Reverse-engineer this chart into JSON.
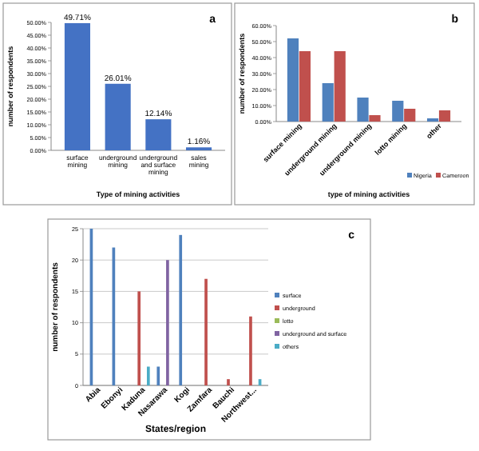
{
  "chart_data": [
    {
      "type": "bar",
      "annotations": [
        "a"
      ],
      "xlabel": "Type of mining activities",
      "ylabel": "number of respondents",
      "categories": [
        "surface mining",
        "underground mining",
        "underground and surface mining",
        "sales mining"
      ],
      "values": [
        49.71,
        26.01,
        12.14,
        1.16
      ],
      "color": "#4472c4",
      "value_labels": [
        "49.71%",
        "26.01%",
        "12.14%",
        "1.16%"
      ],
      "ylim": [
        0,
        50
      ],
      "yticks": [
        {
          "value": 0,
          "label": "0.00%"
        },
        {
          "value": 5,
          "label": "5.00%"
        },
        {
          "value": 10,
          "label": "10.00%"
        },
        {
          "value": 15,
          "label": "15.00%"
        },
        {
          "value": 20,
          "label": "20.00%"
        },
        {
          "value": 25,
          "label": "25.00%"
        },
        {
          "value": 30,
          "label": "30.00%"
        },
        {
          "value": 35,
          "label": "35.00%"
        },
        {
          "value": 40,
          "label": "40.00%"
        },
        {
          "value": 45,
          "label": "45.00%"
        },
        {
          "value": 50,
          "label": "50.00%"
        }
      ]
    },
    {
      "type": "bar",
      "annotations": [
        "b"
      ],
      "xlabel": "type of mining activities",
      "ylabel": "number of respondents",
      "categories": [
        "surface mining",
        "underground mining",
        "underground mining",
        "lotto mining",
        "other"
      ],
      "series": [
        {
          "name": "Nigeria",
          "color": "#4f81bd",
          "values": [
            52,
            24,
            15,
            13,
            2
          ]
        },
        {
          "name": "Cameroon",
          "color": "#c0504d",
          "values": [
            44,
            44,
            4,
            8,
            7
          ]
        }
      ],
      "ylim": [
        0,
        60
      ],
      "yticks": [
        {
          "value": 0,
          "label": "0.00%"
        },
        {
          "value": 10,
          "label": "10.00%"
        },
        {
          "value": 20,
          "label": "20.00%"
        },
        {
          "value": 30,
          "label": "30.00%"
        },
        {
          "value": 40,
          "label": "40.00%"
        },
        {
          "value": 50,
          "label": "50.00%"
        },
        {
          "value": 60,
          "label": "60.00%"
        }
      ],
      "legend": "bottom right",
      "grid": false
    },
    {
      "type": "bar",
      "annotations": [
        "c"
      ],
      "xlabel": "States/region",
      "ylabel": "number of respondents",
      "categories": [
        "Abia",
        "Ebonyi",
        "Kaduna",
        "Nasarawa",
        "Kogi",
        "Zamfara",
        "Bauchi",
        "Northwest..."
      ],
      "series": [
        {
          "name": "surface",
          "color": "#4f81bd",
          "values": [
            25,
            22,
            null,
            3,
            24,
            null,
            null,
            null
          ]
        },
        {
          "name": "underground",
          "color": "#c0504d",
          "values": [
            null,
            null,
            15,
            null,
            null,
            17,
            1,
            11
          ]
        },
        {
          "name": "lotto",
          "color": "#9bbb59",
          "values": [
            null,
            null,
            null,
            null,
            null,
            null,
            null,
            null
          ]
        },
        {
          "name": "underground and surface",
          "color": "#8064a2",
          "values": [
            null,
            null,
            null,
            20,
            null,
            null,
            null,
            null
          ]
        },
        {
          "name": "others",
          "color": "#4bacc6",
          "values": [
            null,
            null,
            3,
            null,
            null,
            null,
            null,
            1
          ]
        }
      ],
      "ylim": [
        0,
        25
      ],
      "yticks": [
        0,
        5,
        10,
        15,
        20,
        25
      ],
      "legend": "right",
      "grid": "y"
    }
  ]
}
